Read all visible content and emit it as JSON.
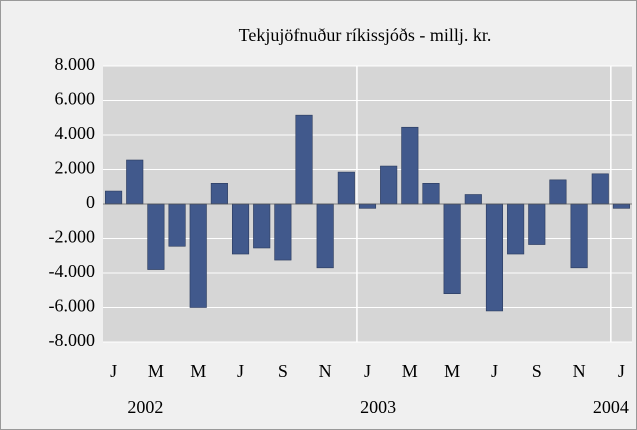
{
  "chart_data": {
    "type": "bar",
    "title": "Tekjujöfnuður ríkissjóðs - millj. kr.",
    "categories": [
      "J",
      null,
      "M",
      null,
      "M",
      null,
      "J",
      null,
      "S",
      null,
      "N",
      null,
      "J",
      null,
      "M",
      null,
      "M",
      null,
      "J",
      null,
      "S",
      null,
      "N",
      null,
      "J"
    ],
    "year_labels": [
      "2002",
      "2003",
      "2004"
    ],
    "values": [
      750,
      2550,
      -3800,
      -2450,
      -6000,
      1200,
      -2900,
      -2550,
      -3250,
      5150,
      -3700,
      1850,
      -250,
      2200,
      4450,
      1200,
      -5200,
      550,
      -6200,
      -2900,
      -2350,
      1400,
      -3700,
      1750,
      -250
    ],
    "color": "#41598c",
    "ylim": [
      -8000,
      8000
    ],
    "yticks": [
      {
        "value": -8000,
        "label": "-8.000"
      },
      {
        "value": -6000,
        "label": "-6.000"
      },
      {
        "value": -4000,
        "label": "-4.000"
      },
      {
        "value": -2000,
        "label": "-2.000"
      },
      0,
      {
        "value": 2000,
        "label": "2.000"
      },
      {
        "value": 4000,
        "label": "4.000"
      },
      {
        "value": 6000,
        "label": "6.000"
      },
      {
        "value": 8000,
        "label": "8.000"
      }
    ],
    "grid": true
  }
}
